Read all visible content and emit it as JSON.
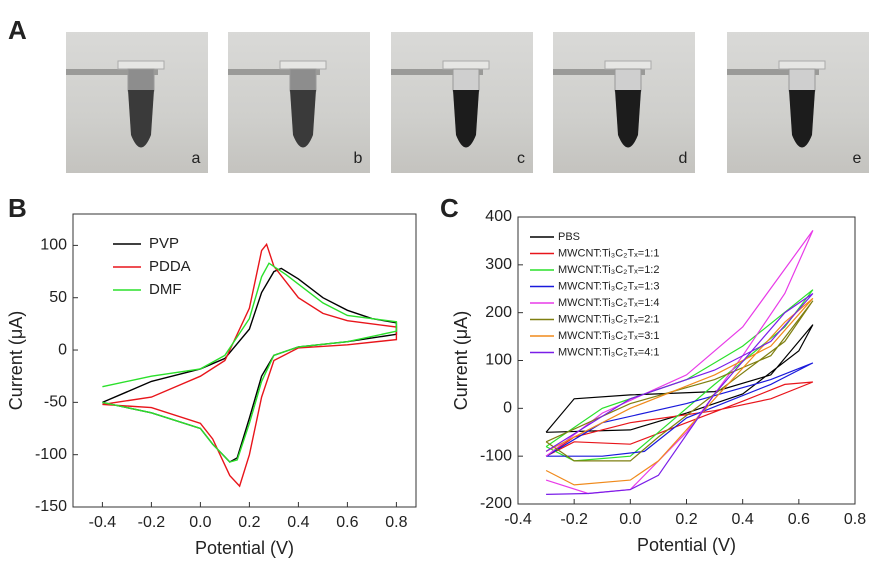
{
  "panel_labels": [
    "A",
    "B",
    "C"
  ],
  "photo_labels": [
    "a",
    "b",
    "c",
    "d",
    "e"
  ],
  "chart_data": [
    {
      "type": "line",
      "xlabel": "Potential (V)",
      "ylabel": "Current (μA)",
      "legend": "upper left",
      "xlim": [
        -0.52,
        0.88
      ],
      "ylim": [
        -150,
        130
      ],
      "xticks": [
        -0.4,
        -0.2,
        {
          "value": 0,
          "label": "0.0"
        },
        0.2,
        0.4,
        0.6,
        0.8
      ],
      "yticks": [
        -150,
        -100,
        -50,
        0,
        50,
        100
      ],
      "series": [
        {
          "name": "PVP",
          "color": "#000000",
          "x": [
            -0.4,
            -0.2,
            0.0,
            0.1,
            0.2,
            0.25,
            0.3,
            0.33,
            0.4,
            0.5,
            0.6,
            0.7,
            0.8,
            0.8,
            0.6,
            0.4,
            0.3,
            0.25,
            0.2,
            0.15,
            0.12,
            0.05,
            0.0,
            -0.2,
            -0.4
          ],
          "values": [
            -50,
            -30,
            -18,
            -8,
            20,
            55,
            75,
            78,
            68,
            50,
            38,
            30,
            26,
            15,
            8,
            3,
            -5,
            -25,
            -65,
            -103,
            -107,
            -90,
            -75,
            -60,
            -50
          ]
        },
        {
          "name": "PDDA",
          "color": "#e8151b",
          "x": [
            -0.4,
            -0.2,
            0.0,
            0.1,
            0.2,
            0.25,
            0.27,
            0.3,
            0.4,
            0.5,
            0.6,
            0.8,
            0.8,
            0.6,
            0.4,
            0.3,
            0.25,
            0.2,
            0.16,
            0.12,
            0.05,
            0.0,
            -0.2,
            -0.4
          ],
          "values": [
            -52,
            -45,
            -25,
            -10,
            40,
            95,
            101,
            80,
            50,
            35,
            28,
            22,
            10,
            5,
            2,
            -10,
            -45,
            -100,
            -130,
            -120,
            -85,
            -70,
            -55,
            -52
          ]
        },
        {
          "name": "DMF",
          "color": "#2be02b",
          "x": [
            -0.4,
            -0.2,
            0.0,
            0.1,
            0.2,
            0.25,
            0.28,
            0.35,
            0.5,
            0.6,
            0.8,
            0.8,
            0.6,
            0.4,
            0.3,
            0.25,
            0.2,
            0.15,
            0.12,
            0.05,
            0.0,
            -0.2,
            -0.4
          ],
          "values": [
            -35,
            -25,
            -18,
            -5,
            30,
            70,
            83,
            72,
            45,
            33,
            27,
            18,
            8,
            3,
            -5,
            -30,
            -70,
            -105,
            -107,
            -90,
            -75,
            -60,
            -50
          ]
        }
      ]
    },
    {
      "type": "line",
      "xlabel": "Potential (V)",
      "ylabel": "Current (μA)",
      "legend": "upper left",
      "xlim": [
        -0.4,
        0.8
      ],
      "ylim": [
        -200,
        400
      ],
      "xticks": [
        -0.4,
        -0.2,
        {
          "value": 0,
          "label": "0.0"
        },
        0.2,
        0.4,
        0.6,
        0.8
      ],
      "yticks": [
        -200,
        -100,
        0,
        100,
        200,
        300,
        400
      ],
      "series": [
        {
          "name": "PBS",
          "color": "#000000",
          "x": [
            -0.3,
            -0.2,
            0.0,
            0.3,
            0.5,
            0.65,
            0.6,
            0.4,
            0.2,
            0.0,
            -0.3
          ],
          "values": [
            -50,
            20,
            28,
            35,
            70,
            175,
            120,
            30,
            -10,
            -45,
            -50
          ]
        },
        {
          "name": "MWCNT:Ti₃C₂Tₓ=1:1",
          "color": "#e8151b",
          "x": [
            -0.3,
            -0.2,
            0.0,
            0.3,
            0.5,
            0.65,
            0.55,
            0.4,
            0.2,
            0.0,
            -0.2,
            -0.3
          ],
          "values": [
            -100,
            -60,
            -30,
            -5,
            20,
            55,
            50,
            15,
            -30,
            -75,
            -70,
            -100
          ]
        },
        {
          "name": "MWCNT:Ti₃C₂Tₓ=1:2",
          "color": "#2be02b",
          "x": [
            -0.3,
            -0.1,
            0.2,
            0.4,
            0.65,
            0.55,
            0.3,
            0.1,
            0.0,
            -0.2,
            -0.3
          ],
          "values": [
            -80,
            0,
            60,
            130,
            248,
            170,
            50,
            -50,
            -100,
            -110,
            -80
          ]
        },
        {
          "name": "MWCNT:Ti₃C₂Tₓ=1:3",
          "color": "#1a1adc",
          "x": [
            -0.3,
            -0.1,
            0.2,
            0.5,
            0.65,
            0.5,
            0.2,
            0.05,
            -0.1,
            -0.3
          ],
          "values": [
            -100,
            -30,
            10,
            60,
            95,
            50,
            -20,
            -90,
            -100,
            -100
          ]
        },
        {
          "name": "MWCNT:Ti₃C₂Tₓ=1:4",
          "color": "#e83be8",
          "x": [
            -0.3,
            -0.1,
            0.2,
            0.4,
            0.65,
            0.55,
            0.4,
            0.2,
            0.0,
            -0.15,
            -0.3
          ],
          "values": [
            -100,
            -10,
            70,
            170,
            372,
            240,
            110,
            -50,
            -170,
            -178,
            -150
          ]
        },
        {
          "name": "MWCNT:Ti₃C₂Tₓ=2:1",
          "color": "#7f7f10",
          "x": [
            -0.3,
            0.0,
            0.3,
            0.5,
            0.65,
            0.55,
            0.3,
            0.1,
            0.0,
            -0.2,
            -0.3
          ],
          "values": [
            -70,
            10,
            60,
            110,
            225,
            140,
            30,
            -60,
            -110,
            -110,
            -70
          ]
        },
        {
          "name": "MWCNT:Ti₃C₂Tₓ=3:1",
          "color": "#f08a1c",
          "x": [
            -0.3,
            0.0,
            0.3,
            0.5,
            0.65,
            0.55,
            0.3,
            0.1,
            0.0,
            -0.2,
            -0.3
          ],
          "values": [
            -90,
            0,
            70,
            130,
            230,
            180,
            20,
            -110,
            -150,
            -160,
            -130
          ]
        },
        {
          "name": "MWCNT:Ti₃C₂Tₓ=4:1",
          "color": "#7a1ee8",
          "x": [
            -0.3,
            0.0,
            0.3,
            0.5,
            0.65,
            0.55,
            0.3,
            0.1,
            0.0,
            -0.15,
            -0.3
          ],
          "values": [
            -90,
            20,
            80,
            140,
            240,
            200,
            30,
            -140,
            -170,
            -178,
            -180
          ]
        }
      ]
    }
  ]
}
